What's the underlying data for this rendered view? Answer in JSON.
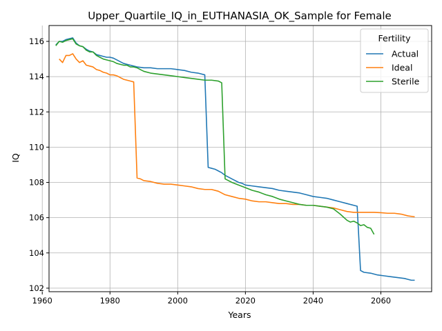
{
  "chart_data": {
    "type": "line",
    "title": "Upper_Quartile_IQ_in_EUTHANASIA_OK_Sample for Female",
    "xlabel": "Years",
    "ylabel": "IQ",
    "xlim": [
      1962,
      2075
    ],
    "ylim": [
      101.8,
      116.9
    ],
    "xticks": [
      1960,
      1980,
      2000,
      2020,
      2040,
      2060
    ],
    "yticks": [
      102,
      104,
      106,
      108,
      110,
      112,
      114,
      116
    ],
    "grid": true,
    "legend": {
      "title": "Fertility",
      "position": "top-right"
    },
    "series": [
      {
        "name": "Actual",
        "color": "#1f77b4",
        "points": [
          [
            1964,
            115.8
          ],
          [
            1965,
            116.0
          ],
          [
            1966,
            116.0
          ],
          [
            1967,
            116.1
          ],
          [
            1968,
            116.15
          ],
          [
            1969,
            116.2
          ],
          [
            1970,
            115.9
          ],
          [
            1971,
            115.75
          ],
          [
            1972,
            115.7
          ],
          [
            1973,
            115.55
          ],
          [
            1974,
            115.45
          ],
          [
            1975,
            115.4
          ],
          [
            1976,
            115.25
          ],
          [
            1977,
            115.2
          ],
          [
            1978,
            115.15
          ],
          [
            1979,
            115.1
          ],
          [
            1980,
            115.1
          ],
          [
            1981,
            115.05
          ],
          [
            1982,
            114.95
          ],
          [
            1983,
            114.85
          ],
          [
            1984,
            114.75
          ],
          [
            1985,
            114.7
          ],
          [
            1986,
            114.65
          ],
          [
            1987,
            114.6
          ],
          [
            1988,
            114.55
          ],
          [
            1990,
            114.5
          ],
          [
            1992,
            114.5
          ],
          [
            1994,
            114.45
          ],
          [
            1996,
            114.45
          ],
          [
            1998,
            114.45
          ],
          [
            2000,
            114.4
          ],
          [
            2002,
            114.35
          ],
          [
            2004,
            114.25
          ],
          [
            2006,
            114.2
          ],
          [
            2008,
            114.1
          ],
          [
            2009,
            108.85
          ],
          [
            2010,
            108.8
          ],
          [
            2011,
            108.75
          ],
          [
            2012,
            108.65
          ],
          [
            2013,
            108.55
          ],
          [
            2014,
            108.4
          ],
          [
            2015,
            108.3
          ],
          [
            2016,
            108.2
          ],
          [
            2017,
            108.1
          ],
          [
            2018,
            108.0
          ],
          [
            2019,
            107.95
          ],
          [
            2020,
            107.85
          ],
          [
            2022,
            107.8
          ],
          [
            2024,
            107.75
          ],
          [
            2026,
            107.7
          ],
          [
            2028,
            107.65
          ],
          [
            2030,
            107.55
          ],
          [
            2032,
            107.5
          ],
          [
            2034,
            107.45
          ],
          [
            2036,
            107.4
          ],
          [
            2038,
            107.3
          ],
          [
            2040,
            107.2
          ],
          [
            2042,
            107.15
          ],
          [
            2044,
            107.1
          ],
          [
            2046,
            107.0
          ],
          [
            2048,
            106.9
          ],
          [
            2050,
            106.8
          ],
          [
            2052,
            106.7
          ],
          [
            2053,
            106.65
          ],
          [
            2054,
            103.0
          ],
          [
            2055,
            102.9
          ],
          [
            2057,
            102.85
          ],
          [
            2059,
            102.75
          ],
          [
            2061,
            102.7
          ],
          [
            2063,
            102.65
          ],
          [
            2065,
            102.6
          ],
          [
            2067,
            102.55
          ],
          [
            2068,
            102.5
          ],
          [
            2069,
            102.45
          ],
          [
            2070,
            102.45
          ]
        ]
      },
      {
        "name": "Ideal",
        "color": "#ff7f0e",
        "points": [
          [
            1965,
            115.0
          ],
          [
            1966,
            114.8
          ],
          [
            1967,
            115.2
          ],
          [
            1968,
            115.2
          ],
          [
            1969,
            115.3
          ],
          [
            1970,
            115.0
          ],
          [
            1971,
            114.8
          ],
          [
            1972,
            114.9
          ],
          [
            1973,
            114.65
          ],
          [
            1974,
            114.6
          ],
          [
            1975,
            114.55
          ],
          [
            1976,
            114.4
          ],
          [
            1977,
            114.35
          ],
          [
            1978,
            114.25
          ],
          [
            1979,
            114.2
          ],
          [
            1980,
            114.1
          ],
          [
            1981,
            114.1
          ],
          [
            1982,
            114.05
          ],
          [
            1983,
            113.95
          ],
          [
            1984,
            113.85
          ],
          [
            1985,
            113.8
          ],
          [
            1986,
            113.75
          ],
          [
            1987,
            113.7
          ],
          [
            1988,
            108.25
          ],
          [
            1989,
            108.2
          ],
          [
            1990,
            108.1
          ],
          [
            1992,
            108.05
          ],
          [
            1994,
            107.95
          ],
          [
            1996,
            107.9
          ],
          [
            1998,
            107.9
          ],
          [
            2000,
            107.85
          ],
          [
            2002,
            107.8
          ],
          [
            2004,
            107.75
          ],
          [
            2006,
            107.65
          ],
          [
            2008,
            107.6
          ],
          [
            2010,
            107.6
          ],
          [
            2012,
            107.5
          ],
          [
            2014,
            107.3
          ],
          [
            2016,
            107.2
          ],
          [
            2018,
            107.1
          ],
          [
            2020,
            107.05
          ],
          [
            2022,
            106.95
          ],
          [
            2024,
            106.9
          ],
          [
            2026,
            106.9
          ],
          [
            2028,
            106.85
          ],
          [
            2030,
            106.8
          ],
          [
            2032,
            106.8
          ],
          [
            2034,
            106.75
          ],
          [
            2036,
            106.75
          ],
          [
            2038,
            106.7
          ],
          [
            2040,
            106.7
          ],
          [
            2042,
            106.65
          ],
          [
            2044,
            106.6
          ],
          [
            2046,
            106.55
          ],
          [
            2048,
            106.45
          ],
          [
            2050,
            106.35
          ],
          [
            2052,
            106.3
          ],
          [
            2054,
            106.3
          ],
          [
            2056,
            106.3
          ],
          [
            2058,
            106.3
          ],
          [
            2060,
            106.28
          ],
          [
            2062,
            106.25
          ],
          [
            2064,
            106.25
          ],
          [
            2066,
            106.2
          ],
          [
            2068,
            106.1
          ],
          [
            2070,
            106.05
          ]
        ]
      },
      {
        "name": "Sterile",
        "color": "#2ca02c",
        "points": [
          [
            1964,
            115.75
          ],
          [
            1965,
            116.0
          ],
          [
            1966,
            115.95
          ],
          [
            1967,
            116.05
          ],
          [
            1968,
            116.1
          ],
          [
            1969,
            116.15
          ],
          [
            1970,
            115.85
          ],
          [
            1971,
            115.75
          ],
          [
            1972,
            115.7
          ],
          [
            1973,
            115.5
          ],
          [
            1974,
            115.4
          ],
          [
            1975,
            115.4
          ],
          [
            1976,
            115.2
          ],
          [
            1977,
            115.1
          ],
          [
            1978,
            115.0
          ],
          [
            1979,
            114.95
          ],
          [
            1980,
            114.9
          ],
          [
            1981,
            114.85
          ],
          [
            1982,
            114.75
          ],
          [
            1983,
            114.7
          ],
          [
            1984,
            114.65
          ],
          [
            1985,
            114.65
          ],
          [
            1986,
            114.55
          ],
          [
            1987,
            114.55
          ],
          [
            1988,
            114.5
          ],
          [
            1989,
            114.4
          ],
          [
            1990,
            114.3
          ],
          [
            1992,
            114.2
          ],
          [
            1994,
            114.15
          ],
          [
            1996,
            114.1
          ],
          [
            1998,
            114.05
          ],
          [
            2000,
            114.0
          ],
          [
            2002,
            113.95
          ],
          [
            2004,
            113.9
          ],
          [
            2006,
            113.85
          ],
          [
            2008,
            113.8
          ],
          [
            2010,
            113.8
          ],
          [
            2012,
            113.75
          ],
          [
            2013,
            113.65
          ],
          [
            2014,
            108.2
          ],
          [
            2015,
            108.1
          ],
          [
            2016,
            108.0
          ],
          [
            2018,
            107.85
          ],
          [
            2020,
            107.7
          ],
          [
            2022,
            107.55
          ],
          [
            2024,
            107.45
          ],
          [
            2026,
            107.3
          ],
          [
            2028,
            107.2
          ],
          [
            2030,
            107.05
          ],
          [
            2032,
            106.95
          ],
          [
            2034,
            106.85
          ],
          [
            2036,
            106.75
          ],
          [
            2038,
            106.7
          ],
          [
            2040,
            106.7
          ],
          [
            2042,
            106.65
          ],
          [
            2044,
            106.6
          ],
          [
            2046,
            106.5
          ],
          [
            2048,
            106.2
          ],
          [
            2050,
            105.85
          ],
          [
            2051,
            105.75
          ],
          [
            2052,
            105.8
          ],
          [
            2053,
            105.7
          ],
          [
            2054,
            105.55
          ],
          [
            2055,
            105.6
          ],
          [
            2056,
            105.45
          ],
          [
            2057,
            105.4
          ],
          [
            2058,
            105.05
          ]
        ]
      }
    ]
  }
}
